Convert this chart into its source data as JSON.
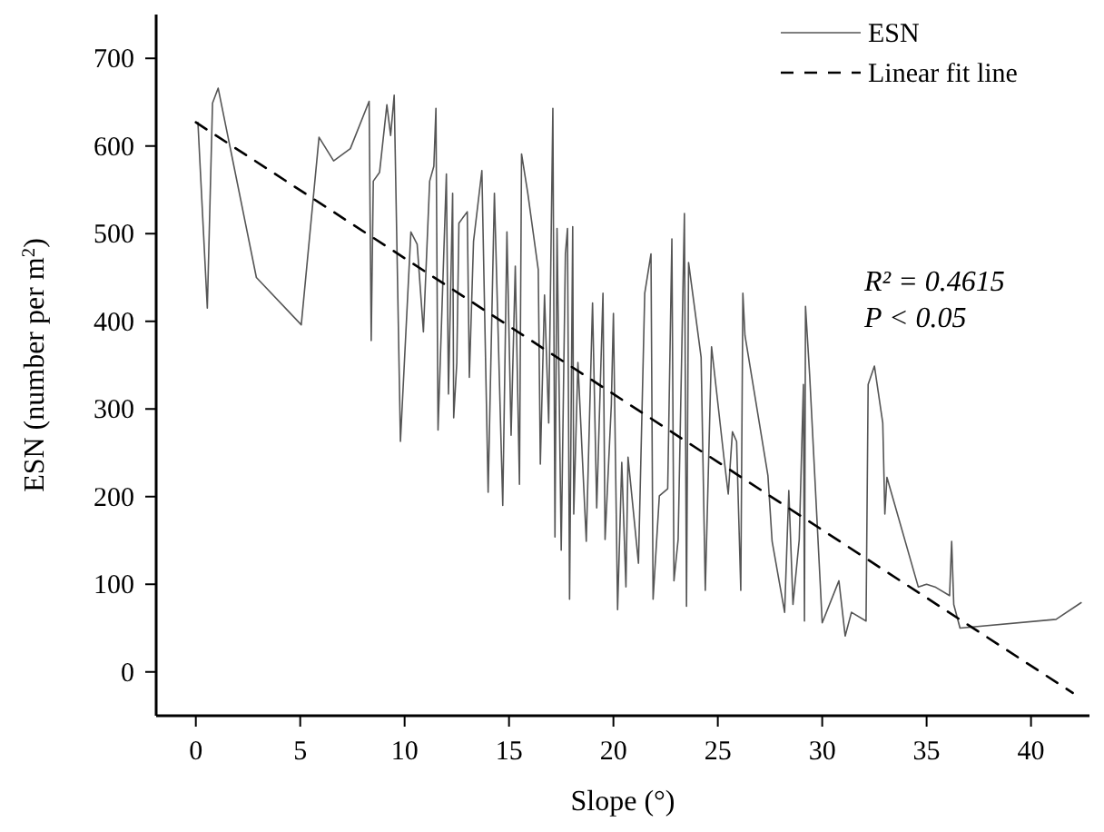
{
  "chart_data": {
    "type": "line",
    "xlabel": "Slope (°)",
    "ylabel": "ESN (number per m$^{2}$)",
    "xlim": [
      -1.9,
      42.8
    ],
    "ylim": [
      -50,
      750
    ],
    "xticks": [
      0,
      5,
      10,
      15,
      20,
      25,
      30,
      35,
      40
    ],
    "yticks": [
      0,
      100,
      200,
      300,
      400,
      500,
      600,
      700
    ],
    "grid": false,
    "legend": "top right",
    "marker": "none",
    "annotations": [
      "R² = 0.4615",
      "P < 0.05"
    ],
    "series": [
      {
        "name": "ESN",
        "color": "#555555",
        "line_style": "solid",
        "x": [
          0.1,
          0.55,
          0.8,
          1.07,
          2.9,
          5.05,
          5.9,
          6.6,
          7.4,
          8.3,
          8.4,
          8.5,
          8.8,
          9.15,
          9.33,
          9.5,
          9.8,
          10.3,
          10.6,
          10.9,
          11.2,
          11.4,
          11.5,
          11.6,
          12.0,
          12.1,
          12.3,
          12.35,
          12.5,
          12.6,
          13.0,
          13.1,
          13.3,
          13.7,
          14.0,
          14.3,
          14.7,
          14.9,
          15.1,
          15.3,
          15.5,
          15.6,
          15.9,
          16.4,
          16.5,
          16.7,
          16.9,
          17.1,
          17.2,
          17.3,
          17.5,
          17.7,
          17.8,
          17.9,
          18.05,
          18.1,
          18.3,
          18.7,
          19.0,
          19.2,
          19.5,
          19.6,
          19.9,
          20.0,
          20.2,
          20.4,
          20.6,
          20.7,
          21.2,
          21.5,
          21.8,
          21.9,
          22.2,
          22.6,
          22.8,
          22.9,
          23.1,
          23.4,
          23.5,
          23.6,
          24.2,
          24.4,
          24.7,
          25.3,
          25.5,
          25.7,
          25.9,
          26.1,
          26.2,
          26.3,
          27.4,
          27.6,
          28.2,
          28.4,
          28.6,
          28.9,
          29.1,
          29.15,
          29.2,
          29.4,
          30.0,
          30.8,
          31.1,
          31.4,
          32.1,
          32.2,
          32.5,
          32.9,
          33.0,
          33.1,
          34.6,
          35.0,
          35.4,
          36.1,
          36.2,
          36.3,
          36.6,
          41.2,
          42.4
        ],
        "values": [
          627,
          415,
          649,
          666,
          450,
          396,
          610,
          583,
          597,
          651,
          378,
          560,
          570,
          647,
          612,
          658,
          263,
          502,
          488,
          388,
          560,
          577,
          643,
          276,
          568,
          317,
          546,
          290,
          353,
          512,
          525,
          336,
          491,
          572,
          205,
          546,
          190,
          502,
          270,
          463,
          214,
          591,
          546,
          459,
          237,
          430,
          284,
          643,
          154,
          506,
          139,
          477,
          506,
          83,
          508,
          180,
          353,
          149,
          421,
          187,
          432,
          151,
          305,
          409,
          71,
          239,
          97,
          245,
          124,
          432,
          477,
          83,
          201,
          209,
          494,
          104,
          151,
          523,
          75,
          467,
          359,
          93,
          371,
          243,
          203,
          274,
          263,
          93,
          432,
          384,
          224,
          149,
          68,
          207,
          77,
          151,
          328,
          58,
          417,
          338,
          56,
          104,
          41,
          68,
          58,
          328,
          349,
          284,
          180,
          222,
          97,
          100,
          97,
          87,
          149,
          77,
          50,
          60,
          79
        ]
      },
      {
        "name": "Linear fit line",
        "color": "#000000",
        "line_style": "dashed",
        "x": [
          0,
          42
        ],
        "values": [
          627,
          -24
        ]
      }
    ]
  }
}
